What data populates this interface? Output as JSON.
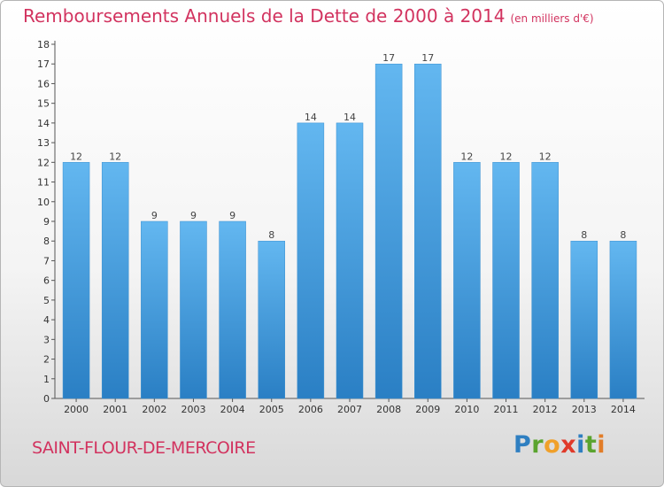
{
  "header": {
    "title": "Remboursements Annuels de la Dette de 2000 à 2014",
    "unit": "(en milliers d'€)"
  },
  "footer": {
    "commune": "SAINT-FLOUR-DE-MERCOIRE",
    "logo_letters": [
      "P",
      "r",
      "o",
      "x",
      "i",
      "t",
      "i"
    ],
    "logo_colors": [
      "#2f7fc1",
      "#5aa42f",
      "#f0a02a",
      "#e03a2a",
      "#2f7fc1",
      "#5aa42f",
      "#e27d28"
    ]
  },
  "colors": {
    "title": "#d2335f",
    "bar_light": "#63b7f0",
    "bar_dark": "#2a7fc4"
  },
  "chart_data": {
    "type": "bar",
    "title": "Remboursements Annuels de la Dette de 2000 à 2014",
    "categories": [
      "2000",
      "2001",
      "2002",
      "2003",
      "2004",
      "2005",
      "2006",
      "2007",
      "2008",
      "2009",
      "2010",
      "2011",
      "2012",
      "2013",
      "2014"
    ],
    "values": [
      12,
      12,
      9,
      9,
      9,
      8,
      14,
      14,
      17,
      17,
      12,
      12,
      12,
      8,
      8
    ],
    "data_labels": [
      "12",
      "12",
      "9",
      "9",
      "9",
      "8",
      "14",
      "14",
      "17",
      "17",
      "12",
      "12",
      "12",
      "8",
      "8"
    ],
    "y_ticks": [
      "0",
      "1",
      "2",
      "3",
      "4",
      "5",
      "6",
      "7",
      "8",
      "9",
      "10",
      "11",
      "12",
      "13",
      "14",
      "15",
      "16",
      "17",
      "18"
    ],
    "ylim": [
      0,
      18
    ],
    "grid": false
  }
}
